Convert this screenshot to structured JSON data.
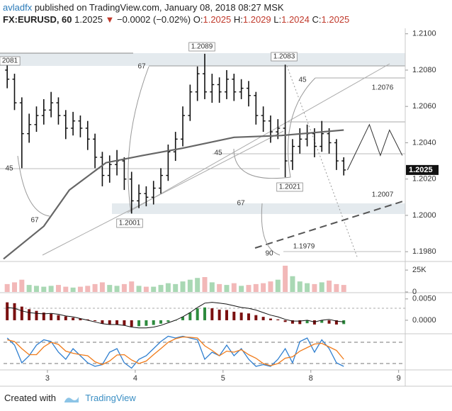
{
  "header": {
    "author": "avladfx",
    "published": "published on TradingView.com, January 08, 2018 08:27 MSK",
    "symbol": "FX:EURUSD, 60",
    "price": "1.2025",
    "arrow": "▼",
    "change": "−0.0002 (−0.02%)",
    "ohlc": [
      {
        "label": "O:",
        "value": "1.2025"
      },
      {
        "label": "H:",
        "value": "1.2029"
      },
      {
        "label": "L:",
        "value": "1.2024"
      },
      {
        "label": "C:",
        "value": "1.2025"
      }
    ]
  },
  "chart_data": [
    {
      "type": "ohlc",
      "color": "#111111",
      "x": [
        1,
        3,
        5,
        7,
        9,
        11,
        13,
        15,
        17,
        19,
        21,
        23,
        25,
        27,
        29,
        31,
        33,
        35,
        37,
        39,
        41,
        43,
        45,
        47,
        49,
        51,
        53,
        55,
        57,
        59,
        61,
        63,
        65,
        67,
        69,
        71,
        73,
        75,
        77,
        79,
        81,
        83,
        85,
        87,
        89,
        91,
        93
      ],
      "open": [
        1.208,
        1.2075,
        1.2062,
        1.2045,
        1.205,
        1.2055,
        1.2058,
        1.2062,
        1.2055,
        1.2048,
        1.2052,
        1.2048,
        1.2042,
        1.2032,
        1.2022,
        1.2028,
        1.203,
        1.202,
        1.2008,
        1.2012,
        1.201,
        1.2015,
        1.2022,
        1.2035,
        1.2042,
        1.2055,
        1.2068,
        1.2078,
        1.2068,
        1.2072,
        1.2068,
        1.2075,
        1.2068,
        1.207,
        1.2066,
        1.2055,
        1.2052,
        1.2046,
        1.2048,
        1.203,
        1.2038,
        1.2042,
        1.2045,
        1.2038,
        1.2045,
        1.204,
        1.203
      ],
      "high": [
        1.2083,
        1.2078,
        1.2065,
        1.2056,
        1.206,
        1.2064,
        1.2068,
        1.2065,
        1.2058,
        1.2057,
        1.2055,
        1.2052,
        1.2045,
        1.2035,
        1.2033,
        1.2036,
        1.2032,
        1.2024,
        1.2017,
        1.2016,
        1.2019,
        1.2026,
        1.2039,
        1.2046,
        1.206,
        1.2072,
        1.2082,
        1.2089,
        1.2078,
        1.2076,
        1.208,
        1.2078,
        1.2075,
        1.2074,
        1.2068,
        1.206,
        1.2055,
        1.2053,
        1.2083,
        1.2042,
        1.2048,
        1.205,
        1.2048,
        1.2052,
        1.2048,
        1.2042,
        1.2032
      ],
      "low": [
        1.207,
        1.2058,
        1.2026,
        1.204,
        1.2046,
        1.205,
        1.2054,
        1.205,
        1.2042,
        1.2044,
        1.2043,
        1.2036,
        1.2026,
        1.2016,
        1.2018,
        1.2022,
        1.2014,
        1.2001,
        1.2004,
        1.2005,
        1.2006,
        1.2012,
        1.2019,
        1.203,
        1.2038,
        1.2052,
        1.2063,
        1.2064,
        1.2062,
        1.2062,
        1.2064,
        1.2063,
        1.2064,
        1.206,
        1.205,
        1.2046,
        1.204,
        1.2042,
        1.2021,
        1.2025,
        1.2034,
        1.2038,
        1.2032,
        1.2035,
        1.2034,
        1.2025,
        1.2022
      ],
      "close": [
        1.2075,
        1.2062,
        1.2045,
        1.205,
        1.2055,
        1.2058,
        1.2062,
        1.2055,
        1.2048,
        1.2052,
        1.2048,
        1.2042,
        1.2032,
        1.2022,
        1.2028,
        1.203,
        1.202,
        1.2008,
        1.2012,
        1.201,
        1.2015,
        1.2022,
        1.2035,
        1.2042,
        1.2055,
        1.2068,
        1.2078,
        1.2068,
        1.2072,
        1.2068,
        1.2075,
        1.2068,
        1.207,
        1.2066,
        1.2055,
        1.2052,
        1.2046,
        1.2048,
        1.203,
        1.2038,
        1.2042,
        1.2045,
        1.2038,
        1.2045,
        1.204,
        1.203,
        1.2025
      ],
      "ma": {
        "color": "#666666",
        "x": [
          0,
          11,
          18,
          28,
          38,
          49,
          63,
          76,
          93
        ],
        "values": [
          1.1976,
          1.1994,
          1.2014,
          1.2029,
          1.2033,
          1.2037,
          1.2043,
          1.2044,
          1.2047
        ]
      },
      "projection": {
        "color": "#333333",
        "x": [
          94,
          100,
          103,
          105.5,
          109
        ],
        "values": [
          1.2025,
          1.205,
          1.2033,
          1.2047,
          1.2033
        ]
      },
      "xlim": [
        0,
        110
      ],
      "xticks": [
        {
          "value": 12,
          "label": "3"
        },
        {
          "value": 36,
          "label": "4"
        },
        {
          "value": 60,
          "label": "5"
        },
        {
          "value": 84,
          "label": "8"
        },
        {
          "value": 108,
          "label": "9"
        }
      ],
      "ylim": [
        1.1975,
        1.2103
      ],
      "yticks": [
        {
          "value": 1.21,
          "label": "1.2100"
        },
        {
          "value": 1.208,
          "label": "1.2080"
        },
        {
          "value": 1.206,
          "label": "1.2060"
        },
        {
          "value": 1.204,
          "label": "1.2040"
        },
        {
          "value": 1.202,
          "label": "1.2020"
        },
        {
          "value": 1.2,
          "label": "1.2000"
        },
        {
          "value": 1.198,
          "label": "1.1980"
        }
      ],
      "price_labels": [
        "2081",
        "1.2089",
        "1.2083",
        "1.2076",
        "1.2021",
        "1.2001",
        "1.2007",
        "1.1979"
      ],
      "fib_labels": [
        "67",
        "45",
        "45",
        "45",
        "67",
        "67",
        "90"
      ]
    },
    {
      "type": "bar",
      "color_up": "#a9d8b4",
      "color_down": "#f2b8b8",
      "values": [
        9000,
        11000,
        14000,
        8000,
        7000,
        6000,
        7000,
        8000,
        6000,
        5000,
        6000,
        7000,
        9000,
        11000,
        8000,
        7000,
        9000,
        12000,
        7000,
        6000,
        6000,
        8000,
        10000,
        9000,
        12000,
        14000,
        16000,
        17000,
        11000,
        9000,
        8000,
        10000,
        7000,
        8000,
        9000,
        10000,
        12000,
        14000,
        30000,
        18000,
        12000,
        10000,
        9000,
        11000,
        13000,
        9000,
        8000
      ],
      "ylim": [
        0,
        34000
      ],
      "yticks": [
        {
          "value": 25000,
          "label": "25K"
        },
        0
      ]
    },
    {
      "type": "macd",
      "color_up": "#2e8b3e",
      "color_down": "#7a1010",
      "line_color": "#111111",
      "values": [
        0.0042,
        0.004,
        0.0032,
        0.0026,
        0.0022,
        0.0018,
        0.0015,
        0.0012,
        0.0009,
        0.0006,
        0.0004,
        0.0002,
        -0.0002,
        -0.0008,
        -0.001,
        -0.0011,
        -0.0012,
        -0.0015,
        -0.0014,
        -0.0013,
        -0.0011,
        -0.0008,
        -0.0004,
        0.0,
        0.0008,
        0.0018,
        0.0028,
        0.003,
        0.0028,
        0.0025,
        0.0024,
        0.002,
        0.0018,
        0.0016,
        0.0012,
        0.0008,
        0.0004,
        0.0002,
        -0.0004,
        -0.0008,
        -0.0009,
        -0.0007,
        -0.001,
        -0.0006,
        -0.0008,
        -0.001,
        -0.0009
      ],
      "line": [
        0.003,
        0.0028,
        0.0022,
        0.0018,
        0.0016,
        0.0015,
        0.0016,
        0.0014,
        0.001,
        0.0008,
        0.0004,
        0.0,
        -0.0004,
        -0.0008,
        -0.001,
        -0.001,
        -0.0012,
        -0.0016,
        -0.0018,
        -0.0018,
        -0.0016,
        -0.0012,
        -0.0006,
        0.0,
        0.0008,
        0.0018,
        0.003,
        0.004,
        0.0042,
        0.004,
        0.0038,
        0.0034,
        0.003,
        0.0028,
        0.0024,
        0.0018,
        0.0012,
        0.0008,
        0.0002,
        -0.0002,
        -0.0002,
        0.0,
        -0.0004,
        0.0,
        0.0002,
        -0.0002,
        -0.0004
      ],
      "ylim": [
        -0.003,
        0.0063
      ],
      "yticks": [
        {
          "value": 0.005,
          "label": "0.0050"
        },
        {
          "value": 0,
          "label": "0.0000"
        }
      ]
    },
    {
      "type": "line",
      "ylim": [
        0,
        100
      ],
      "series": [
        {
          "color": "#2f7fd0",
          "values": [
            90,
            70,
            20,
            40,
            70,
            85,
            80,
            50,
            30,
            60,
            40,
            20,
            10,
            15,
            50,
            60,
            20,
            5,
            30,
            40,
            60,
            80,
            95,
            90,
            95,
            90,
            85,
            30,
            50,
            40,
            70,
            40,
            60,
            30,
            10,
            15,
            10,
            30,
            60,
            20,
            80,
            90,
            50,
            85,
            60,
            20,
            10
          ]
        },
        {
          "color": "#f07b1a",
          "values": [
            85,
            80,
            60,
            43,
            43,
            65,
            78,
            72,
            53,
            47,
            43,
            40,
            23,
            15,
            25,
            42,
            43,
            28,
            18,
            25,
            43,
            60,
            78,
            88,
            93,
            92,
            90,
            68,
            55,
            40,
            53,
            50,
            57,
            43,
            33,
            18,
            12,
            18,
            33,
            37,
            53,
            63,
            73,
            75,
            65,
            55,
            30
          ]
        }
      ]
    }
  ],
  "footer": {
    "created": "Created with",
    "brand": "TradingView"
  }
}
